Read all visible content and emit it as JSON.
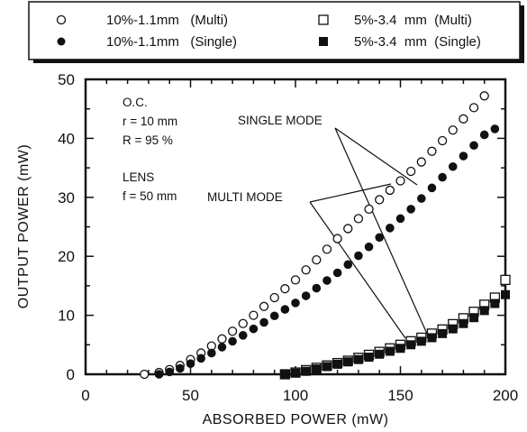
{
  "chart_data": {
    "type": "scatter",
    "xlabel": "ABSORBED POWER (mW)",
    "ylabel": "OUTPUT POWER (mW)",
    "xlim": [
      0,
      200
    ],
    "ylim": [
      0,
      50
    ],
    "xticks": [
      "0",
      "50",
      "100",
      "150",
      "200"
    ],
    "yticks": [
      "0",
      "10",
      "20",
      "30",
      "40",
      "50"
    ],
    "grid": false,
    "legend_position": "top",
    "legend": [
      {
        "label": "10%-1.1mm   (Multi)",
        "marker": "open-circle"
      },
      {
        "label": "5%-3.4  mm  (Multi)",
        "marker": "open-square"
      },
      {
        "label": "10%-1.1mm   (Single)",
        "marker": "filled-circle"
      },
      {
        "label": "5%-3.4  mm  (Single)",
        "marker": "filled-square"
      }
    ],
    "annotations": {
      "oc_lines": [
        "O.C.",
        "r = 10 mm",
        "R = 95 %"
      ],
      "lens_lines": [
        "LENS",
        "f = 50 mm"
      ],
      "single_mode": "SINGLE MODE",
      "multi_mode": "MULTI MODE"
    },
    "series": [
      {
        "marker": "open-circle",
        "x": [
          28,
          35,
          40,
          45,
          50,
          55,
          60,
          65,
          70,
          75,
          80,
          85,
          90,
          95,
          100,
          105,
          110,
          115,
          120,
          125,
          130,
          135,
          140,
          145,
          150,
          155,
          160,
          165,
          170,
          175,
          180,
          185,
          190
        ],
        "y": [
          0.0,
          0.3,
          0.8,
          1.5,
          2.5,
          3.6,
          4.8,
          6.0,
          7.3,
          8.6,
          10.0,
          11.5,
          13.0,
          14.5,
          16.0,
          17.7,
          19.4,
          21.2,
          23.0,
          24.7,
          26.4,
          28.0,
          29.6,
          31.2,
          32.8,
          34.4,
          36.0,
          37.8,
          39.6,
          41.4,
          43.3,
          45.2,
          47.2
        ]
      },
      {
        "marker": "filled-circle",
        "x": [
          35,
          40,
          45,
          50,
          55,
          60,
          65,
          70,
          75,
          80,
          85,
          90,
          95,
          100,
          105,
          110,
          115,
          120,
          125,
          130,
          135,
          140,
          145,
          150,
          155,
          160,
          165,
          170,
          175,
          180,
          185,
          190,
          195
        ],
        "y": [
          0.0,
          0.4,
          1.0,
          1.8,
          2.7,
          3.6,
          4.6,
          5.6,
          6.6,
          7.7,
          8.8,
          9.9,
          11.0,
          12.1,
          13.3,
          14.6,
          15.9,
          17.2,
          18.6,
          20.1,
          21.6,
          23.2,
          24.8,
          26.4,
          28.0,
          29.8,
          31.6,
          33.4,
          35.2,
          37.0,
          38.8,
          40.6,
          41.6
        ]
      },
      {
        "marker": "open-square",
        "x": [
          95,
          100,
          105,
          110,
          115,
          120,
          125,
          130,
          135,
          140,
          145,
          150,
          155,
          160,
          165,
          170,
          175,
          180,
          185,
          190,
          195,
          200
        ],
        "y": [
          0.0,
          0.3,
          0.7,
          1.1,
          1.5,
          1.9,
          2.3,
          2.8,
          3.3,
          3.8,
          4.4,
          5.0,
          5.6,
          6.2,
          6.9,
          7.6,
          8.5,
          9.5,
          10.6,
          11.8,
          13.0,
          16.0
        ]
      },
      {
        "marker": "filled-square",
        "x": [
          95,
          100,
          105,
          110,
          115,
          120,
          125,
          130,
          135,
          140,
          145,
          150,
          155,
          160,
          165,
          170,
          175,
          180,
          185,
          190,
          195,
          200
        ],
        "y": [
          0.0,
          0.2,
          0.5,
          0.9,
          1.3,
          1.7,
          2.1,
          2.5,
          2.9,
          3.4,
          3.9,
          4.4,
          5.0,
          5.6,
          6.2,
          6.9,
          7.7,
          8.6,
          9.6,
          10.8,
          12.0,
          13.5
        ]
      }
    ]
  }
}
